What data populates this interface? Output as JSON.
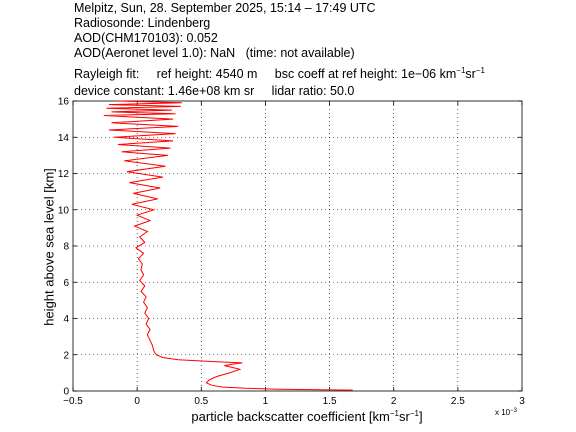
{
  "header": {
    "line1": "Melpitz, Sun, 28. September 2025, 15:14 – 17:49 UTC",
    "line2": "Radiosonde: Lindenberg",
    "line3": "AOD(CHM170103): 0.052",
    "line4": "AOD(Aeronet level 1.0): NaN   (time: not available)",
    "line5_a": "Rayleigh fit:     ref height: 4540 m     bsc coeff at ref height: 1e−06 km",
    "line5_sup1": "−1",
    "line5_mid": "sr",
    "line5_sup2": "−1",
    "line6": "device constant: 1.46e+08 km sr     lidar ratio: 50.0"
  },
  "axes": {
    "xlabel_main": "particle backscatter coefficient [km",
    "xlabel_sup1": "−1",
    "xlabel_mid": "sr",
    "xlabel_sup2": "−1",
    "xlabel_end": "]",
    "ylabel": "height above sea level [km]",
    "xscale_base": "x 10",
    "xscale_exp": "−3"
  },
  "chart_data": {
    "type": "line",
    "xlim": [
      -0.5,
      3
    ],
    "ylim": [
      0,
      16
    ],
    "xticks": [
      -0.5,
      0,
      0.5,
      1,
      1.5,
      2,
      2.5,
      3
    ],
    "xtick_labels": [
      "−0.5",
      "0",
      "0.5",
      "1",
      "1.5",
      "2",
      "2.5",
      "3"
    ],
    "yticks": [
      0,
      2,
      4,
      6,
      8,
      10,
      12,
      14,
      16
    ],
    "ytick_labels": [
      "0",
      "2",
      "4",
      "6",
      "8",
      "10",
      "12",
      "14",
      "16"
    ],
    "grid": true,
    "line_color": "#ff0000",
    "series": [
      {
        "values_x": [
          1.68,
          1.1,
          0.85,
          0.66,
          0.58,
          0.54,
          0.56,
          0.62,
          0.72,
          0.8,
          0.74,
          0.68,
          0.74,
          0.82,
          0.6,
          0.32,
          0.2,
          0.15,
          0.13,
          0.12,
          0.1,
          0.08,
          0.1,
          0.07,
          0.09,
          0.06,
          0.08,
          0.05,
          0.07,
          0.03,
          0.06,
          0.02,
          0.05,
          0.03,
          0.04,
          0.01,
          0.05,
          -0.01,
          0.06,
          0.02,
          0.08,
          -0.02,
          0.1,
          0.0,
          0.13,
          -0.04,
          0.16,
          -0.03,
          0.18,
          -0.06,
          0.2,
          -0.08,
          0.22,
          -0.1,
          0.24,
          -0.12,
          0.26,
          -0.15,
          0.28,
          -0.18,
          0.3,
          -0.22,
          0.32,
          -0.2,
          0.28,
          -0.26,
          0.3,
          -0.2,
          0.27,
          -0.24,
          0.34,
          -0.22,
          0.35,
          -0.14
        ],
        "values_y": [
          0.05,
          0.1,
          0.15,
          0.22,
          0.32,
          0.45,
          0.6,
          0.8,
          1.0,
          1.2,
          1.3,
          1.4,
          1.48,
          1.55,
          1.62,
          1.72,
          1.85,
          2.0,
          2.2,
          2.5,
          2.8,
          3.1,
          3.4,
          3.7,
          4.0,
          4.3,
          4.6,
          4.9,
          5.2,
          5.5,
          5.8,
          6.1,
          6.4,
          6.7,
          7.0,
          7.3,
          7.6,
          7.9,
          8.2,
          8.5,
          8.8,
          9.1,
          9.4,
          9.7,
          10.0,
          10.3,
          10.6,
          10.9,
          11.2,
          11.5,
          11.8,
          12.1,
          12.4,
          12.7,
          13.0,
          13.2,
          13.4,
          13.6,
          13.8,
          14.0,
          14.2,
          14.4,
          14.6,
          14.8,
          15.0,
          15.2,
          15.3,
          15.4,
          15.5,
          15.6,
          15.7,
          15.8,
          15.9,
          16.0
        ]
      }
    ]
  }
}
